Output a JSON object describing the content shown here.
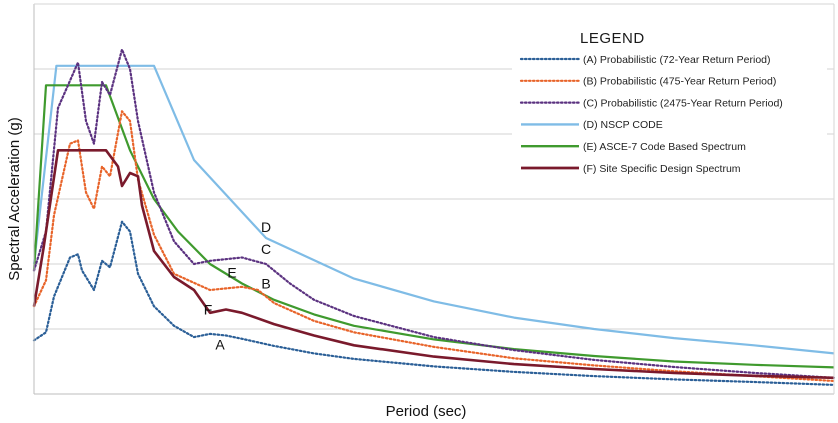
{
  "chart_data": {
    "type": "line",
    "title": "",
    "xlabel": "Period (sec)",
    "ylabel": "Spectral Acceleration (g)",
    "xlim": [
      0,
      10
    ],
    "ylim": [
      0,
      1.2
    ],
    "grid": {
      "horizontal": true,
      "vertical": false
    },
    "tick_labels_shown": false,
    "legend": {
      "title": "LEGEND",
      "placement": "top-right"
    },
    "series": [
      {
        "name": "(A) Probabilistic (72-Year Return Period)",
        "letter": "A",
        "color": "#2b5f97",
        "style": "dotted",
        "points": [
          [
            0,
            0.165
          ],
          [
            0.15,
            0.19
          ],
          [
            0.25,
            0.3
          ],
          [
            0.45,
            0.42
          ],
          [
            0.55,
            0.43
          ],
          [
            0.6,
            0.38
          ],
          [
            0.75,
            0.32
          ],
          [
            0.85,
            0.41
          ],
          [
            0.95,
            0.39
          ],
          [
            1.1,
            0.53
          ],
          [
            1.2,
            0.5
          ],
          [
            1.3,
            0.37
          ],
          [
            1.5,
            0.27
          ],
          [
            1.75,
            0.21
          ],
          [
            2.0,
            0.175
          ],
          [
            2.2,
            0.185
          ],
          [
            2.4,
            0.18
          ],
          [
            2.6,
            0.17
          ],
          [
            3.0,
            0.148
          ],
          [
            3.5,
            0.125
          ],
          [
            4.0,
            0.108
          ],
          [
            5.0,
            0.085
          ],
          [
            6.0,
            0.068
          ],
          [
            7.0,
            0.055
          ],
          [
            8.0,
            0.045
          ],
          [
            9.0,
            0.037
          ],
          [
            10.0,
            0.028
          ]
        ]
      },
      {
        "name": "(B) Probabilistic (475-Year Return Period)",
        "letter": "B",
        "color": "#e8642a",
        "style": "dotted",
        "points": [
          [
            0,
            0.27
          ],
          [
            0.15,
            0.35
          ],
          [
            0.25,
            0.55
          ],
          [
            0.45,
            0.77
          ],
          [
            0.55,
            0.78
          ],
          [
            0.65,
            0.62
          ],
          [
            0.75,
            0.57
          ],
          [
            0.85,
            0.7
          ],
          [
            0.95,
            0.67
          ],
          [
            1.1,
            0.87
          ],
          [
            1.2,
            0.84
          ],
          [
            1.3,
            0.66
          ],
          [
            1.5,
            0.49
          ],
          [
            1.75,
            0.37
          ],
          [
            2.2,
            0.32
          ],
          [
            2.6,
            0.33
          ],
          [
            2.8,
            0.32
          ],
          [
            3.0,
            0.28
          ],
          [
            3.5,
            0.225
          ],
          [
            4.0,
            0.19
          ],
          [
            5.0,
            0.145
          ],
          [
            6.0,
            0.11
          ],
          [
            7.0,
            0.088
          ],
          [
            8.0,
            0.07
          ],
          [
            9.0,
            0.055
          ],
          [
            10.0,
            0.04
          ]
        ]
      },
      {
        "name": "(C) Probabilistic (2475-Year Return Period)",
        "letter": "C",
        "color": "#5b3280",
        "style": "dotted",
        "points": [
          [
            0,
            0.38
          ],
          [
            0.15,
            0.5
          ],
          [
            0.3,
            0.88
          ],
          [
            0.55,
            1.02
          ],
          [
            0.65,
            0.84
          ],
          [
            0.75,
            0.77
          ],
          [
            0.85,
            0.96
          ],
          [
            0.95,
            0.92
          ],
          [
            1.1,
            1.06
          ],
          [
            1.2,
            1.0
          ],
          [
            1.3,
            0.84
          ],
          [
            1.5,
            0.62
          ],
          [
            1.75,
            0.47
          ],
          [
            2.0,
            0.4
          ],
          [
            2.2,
            0.41
          ],
          [
            2.6,
            0.42
          ],
          [
            2.9,
            0.4
          ],
          [
            3.2,
            0.34
          ],
          [
            3.5,
            0.29
          ],
          [
            4.0,
            0.24
          ],
          [
            5.0,
            0.175
          ],
          [
            6.0,
            0.135
          ],
          [
            7.0,
            0.105
          ],
          [
            8.0,
            0.083
          ],
          [
            9.0,
            0.065
          ],
          [
            10.0,
            0.05
          ]
        ]
      },
      {
        "name": "(D) NSCP CODE",
        "letter": "D",
        "color": "#7fbce6",
        "style": "solid",
        "points": [
          [
            0,
            0.4
          ],
          [
            0.28,
            1.01
          ],
          [
            1.5,
            1.01
          ],
          [
            2.0,
            0.72
          ],
          [
            2.9,
            0.48
          ],
          [
            4.0,
            0.355
          ],
          [
            5.0,
            0.285
          ],
          [
            6.0,
            0.235
          ],
          [
            7.0,
            0.2
          ],
          [
            8.0,
            0.172
          ],
          [
            9.0,
            0.15
          ],
          [
            10.0,
            0.125
          ]
        ]
      },
      {
        "name": "(E) ASCE-7 Code Based Spectrum",
        "letter": "E",
        "color": "#3f9a2e",
        "style": "solid",
        "points": [
          [
            0,
            0.38
          ],
          [
            0.15,
            0.95
          ],
          [
            0.9,
            0.95
          ],
          [
            1.2,
            0.75
          ],
          [
            1.5,
            0.6
          ],
          [
            1.8,
            0.5
          ],
          [
            2.2,
            0.4
          ],
          [
            2.6,
            0.34
          ],
          [
            3.0,
            0.29
          ],
          [
            3.5,
            0.245
          ],
          [
            4.0,
            0.21
          ],
          [
            5.0,
            0.168
          ],
          [
            6.0,
            0.138
          ],
          [
            7.0,
            0.117
          ],
          [
            8.0,
            0.1
          ],
          [
            9.0,
            0.09
          ],
          [
            10.0,
            0.082
          ]
        ]
      },
      {
        "name": "(F) Site Specific Design Spectrum",
        "letter": "F",
        "color": "#7a1a2c",
        "style": "solid",
        "points": [
          [
            0,
            0.27
          ],
          [
            0.12,
            0.45
          ],
          [
            0.3,
            0.75
          ],
          [
            0.9,
            0.75
          ],
          [
            1.05,
            0.7
          ],
          [
            1.1,
            0.64
          ],
          [
            1.2,
            0.68
          ],
          [
            1.3,
            0.67
          ],
          [
            1.35,
            0.58
          ],
          [
            1.5,
            0.44
          ],
          [
            1.75,
            0.36
          ],
          [
            2.0,
            0.32
          ],
          [
            2.2,
            0.25
          ],
          [
            2.4,
            0.26
          ],
          [
            2.6,
            0.25
          ],
          [
            3.0,
            0.215
          ],
          [
            3.5,
            0.18
          ],
          [
            4.0,
            0.15
          ],
          [
            5.0,
            0.115
          ],
          [
            6.0,
            0.092
          ],
          [
            7.0,
            0.077
          ],
          [
            8.0,
            0.065
          ],
          [
            9.0,
            0.056
          ],
          [
            10.0,
            0.05
          ]
        ]
      }
    ],
    "annotations": [
      {
        "text": "D",
        "series": "D",
        "x": 2.9
      },
      {
        "text": "C",
        "series": "C",
        "x": 2.9
      },
      {
        "text": "B",
        "series": "B",
        "x": 2.9
      },
      {
        "text": "E",
        "series": "E",
        "x": 2.6
      },
      {
        "text": "F",
        "series": "F",
        "x": 2.35
      },
      {
        "text": "A",
        "series": "A",
        "x": 2.4
      }
    ]
  }
}
